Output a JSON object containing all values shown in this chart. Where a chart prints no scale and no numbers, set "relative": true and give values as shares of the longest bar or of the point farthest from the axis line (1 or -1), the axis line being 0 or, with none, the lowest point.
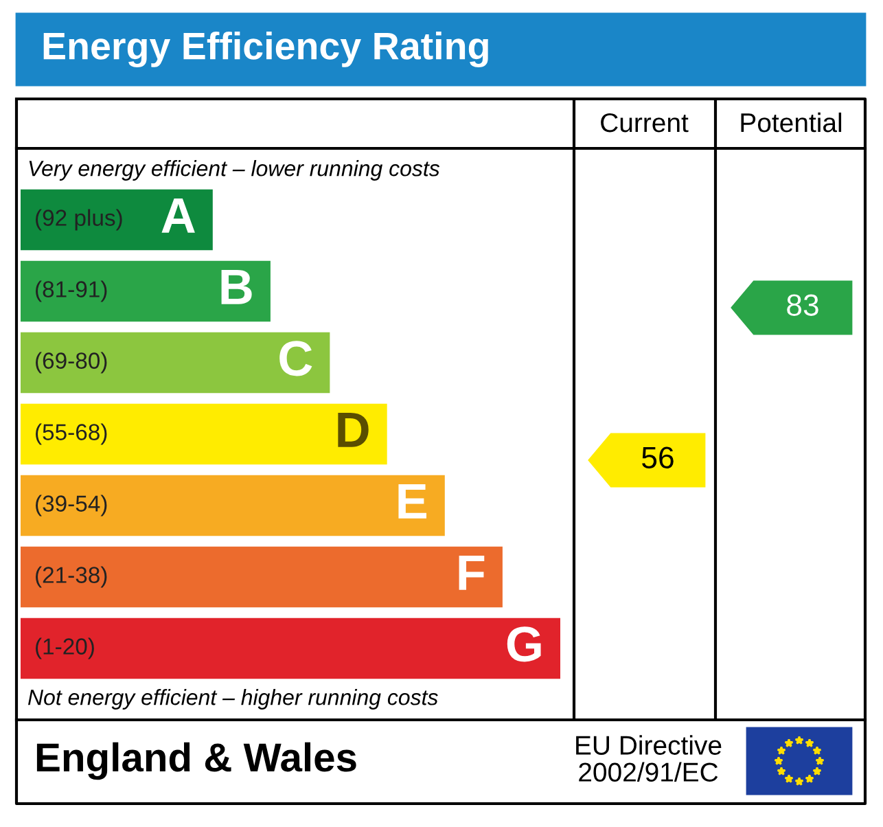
{
  "chart_data": {
    "type": "bar",
    "orientation": "horizontal",
    "relative": true,
    "title": "Energy Efficiency Rating",
    "categories": [
      "A",
      "B",
      "C",
      "D",
      "E",
      "F",
      "G"
    ],
    "values": [
      0.356,
      0.463,
      0.573,
      0.679,
      0.786,
      0.893,
      1
    ],
    "colors": [
      "#0e8a3e",
      "#2aa548",
      "#8cc63f",
      "#ffec00",
      "#f7ab22",
      "#ec6b2d",
      "#e1232b"
    ],
    "annotations": [
      "Current",
      "Potential",
      "Very energy efficient – lower running costs",
      "Not energy efficient – higher running costs",
      "England & Wales",
      "EU Directive\n2002/91/EC",
      "(92 plus)",
      "(81-91)",
      "(69-80)",
      "(55-68)",
      "(39-54)",
      "(21-38)",
      "(1-20)",
      "56",
      "83"
    ]
  }
}
